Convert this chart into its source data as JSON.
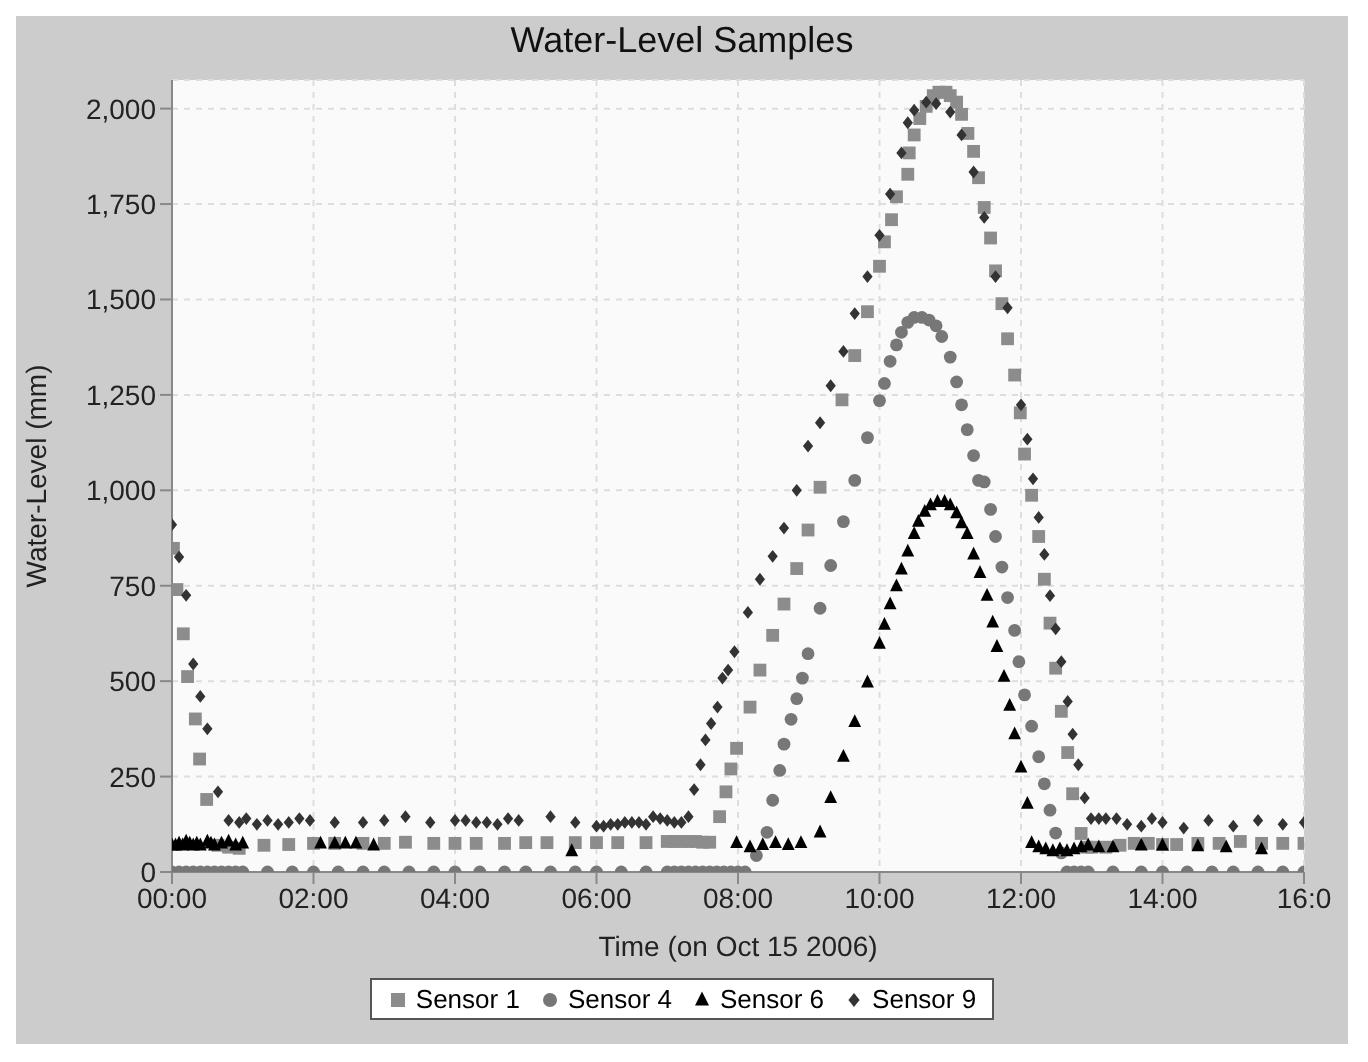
{
  "chart_data": {
    "type": "scatter",
    "title": "Water-Level Samples",
    "xlabel": "Time (on Oct 15 2006)",
    "ylabel": "Water-Level (mm)",
    "xlim": [
      0,
      16
    ],
    "xticks": [
      {
        "value": 0,
        "label": "00:00"
      },
      {
        "value": 2,
        "label": "02:00"
      },
      {
        "value": 4,
        "label": "04:00"
      },
      {
        "value": 6,
        "label": "06:00"
      },
      {
        "value": 8,
        "label": "08:00"
      },
      {
        "value": 10,
        "label": "10:00"
      },
      {
        "value": 12,
        "label": "12:00"
      },
      {
        "value": 14,
        "label": "14:00"
      },
      {
        "value": 16,
        "label": "16:0"
      }
    ],
    "ylim": [
      0,
      2075
    ],
    "yticks": [
      0,
      250,
      500,
      750,
      {
        "value": 1000,
        "label": "1,000"
      },
      {
        "value": 1250,
        "label": "1,250"
      },
      {
        "value": 1500,
        "label": "1,500"
      },
      {
        "value": 1750,
        "label": "1,750"
      },
      {
        "value": 2000,
        "label": "2,000"
      }
    ],
    "grid": true,
    "legend": "bottom",
    "series": [
      {
        "name": "Sensor 1",
        "color": "#8c8c8c",
        "marker": "square",
        "x": [
          0.02,
          0.07,
          0.16,
          0.22,
          0.33,
          0.39,
          0.49,
          0.65,
          0.8,
          0.95,
          1.3,
          1.65,
          2.0,
          2.3,
          2.7,
          3.0,
          3.3,
          3.7,
          4.0,
          4.3,
          4.7,
          5.0,
          5.3,
          5.7,
          6.0,
          6.3,
          6.7,
          7.0,
          7.1,
          7.2,
          7.3,
          7.4,
          7.5,
          7.6,
          7.74,
          7.83,
          7.9,
          7.98,
          8.17,
          8.31,
          8.49,
          8.65,
          8.83,
          8.99,
          9.16,
          9.47,
          9.65,
          9.83,
          10.0,
          10.07,
          10.17,
          10.24,
          10.4,
          10.42,
          10.49,
          10.57,
          10.66,
          10.76,
          10.84,
          10.94,
          11.0,
          11.09,
          11.16,
          11.25,
          11.33,
          11.4,
          11.48,
          11.57,
          11.64,
          11.73,
          11.81,
          11.91,
          11.99,
          12.05,
          12.15,
          12.25,
          12.33,
          12.41,
          12.49,
          12.57,
          12.66,
          12.73,
          12.85,
          12.93,
          13.0,
          13.2,
          13.4,
          13.6,
          13.8,
          14.0,
          14.2,
          14.5,
          14.8,
          15.1,
          15.4,
          15.7,
          16.0
        ],
        "values": [
          848,
          740,
          624,
          512,
          401,
          296,
          190,
          70,
          65,
          62,
          70,
          72,
          75,
          75,
          75,
          75,
          78,
          75,
          75,
          75,
          75,
          77,
          77,
          77,
          77,
          77,
          77,
          80,
          80,
          80,
          80,
          80,
          78,
          78,
          145,
          210,
          270,
          324,
          432,
          529,
          620,
          702,
          795,
          896,
          1008,
          1237,
          1353,
          1468,
          1587,
          1651,
          1709,
          1769,
          1828,
          1884,
          1931,
          1974,
          2006,
          2034,
          2043,
          2043,
          2034,
          2017,
          1985,
          1935,
          1888,
          1819,
          1741,
          1661,
          1575,
          1489,
          1397,
          1302,
          1203,
          1095,
          987,
          879,
          767,
          652,
          534,
          421,
          313,
          205,
          101,
          65,
          65,
          65,
          70,
          75,
          75,
          72,
          72,
          75,
          75,
          80,
          75,
          75,
          75
        ]
      },
      {
        "name": "Sensor 4",
        "color": "#777777",
        "marker": "circle",
        "x": [
          0,
          0.1,
          0.2,
          0.3,
          0.4,
          0.5,
          0.6,
          0.7,
          0.8,
          0.9,
          1.0,
          1.35,
          1.7,
          2.0,
          2.35,
          2.7,
          3.0,
          3.35,
          3.7,
          4.0,
          4.35,
          4.7,
          5.0,
          5.35,
          5.7,
          6.0,
          6.35,
          6.7,
          7.0,
          7.1,
          7.2,
          7.3,
          7.4,
          7.5,
          7.6,
          7.7,
          7.8,
          7.9,
          8.0,
          8.1,
          8.26,
          8.41,
          8.49,
          8.59,
          8.65,
          8.75,
          8.83,
          8.91,
          8.99,
          9.16,
          9.31,
          9.49,
          9.65,
          9.83,
          10.0,
          10.07,
          10.15,
          10.24,
          10.31,
          10.4,
          10.49,
          10.6,
          10.7,
          10.8,
          10.88,
          11.0,
          11.09,
          11.16,
          11.24,
          11.33,
          11.4,
          11.48,
          11.57,
          11.64,
          11.73,
          11.81,
          11.91,
          11.97,
          12.05,
          12.15,
          12.25,
          12.33,
          12.41,
          12.49,
          12.57,
          12.65,
          12.75,
          12.85,
          12.95,
          13.3,
          13.7,
          14.0,
          14.35,
          14.7,
          15.0,
          15.35,
          15.7,
          16.0
        ],
        "values": [
          0,
          0,
          0,
          0,
          0,
          0,
          0,
          0,
          0,
          0,
          0,
          0,
          0,
          0,
          0,
          0,
          0,
          0,
          0,
          0,
          0,
          0,
          0,
          0,
          0,
          0,
          0,
          0,
          0,
          0,
          0,
          0,
          0,
          0,
          0,
          0,
          0,
          0,
          0,
          0,
          43,
          104,
          188,
          266,
          335,
          400,
          454,
          508,
          572,
          691,
          803,
          918,
          1026,
          1138,
          1235,
          1280,
          1338,
          1381,
          1414,
          1440,
          1453,
          1453,
          1446,
          1431,
          1403,
          1349,
          1284,
          1224,
          1159,
          1091,
          1026,
          1022,
          950,
          879,
          799,
          719,
          633,
          551,
          464,
          382,
          302,
          231,
          162,
          102,
          50,
          0,
          0,
          0,
          0,
          0,
          0,
          0,
          0,
          0,
          0,
          0,
          0,
          0
        ]
      },
      {
        "name": "Sensor 6",
        "color": "#000000",
        "marker": "triangle",
        "x": [
          0,
          0.05,
          0.1,
          0.15,
          0.2,
          0.25,
          0.3,
          0.35,
          0.4,
          0.5,
          0.55,
          0.6,
          0.7,
          0.8,
          0.9,
          1.0,
          2.1,
          2.3,
          2.45,
          2.6,
          2.85,
          5.65,
          7.98,
          8.17,
          8.35,
          8.53,
          8.71,
          8.89,
          9.16,
          9.31,
          9.49,
          9.65,
          9.83,
          10.0,
          10.07,
          10.15,
          10.24,
          10.31,
          10.4,
          10.49,
          10.55,
          10.64,
          10.72,
          10.82,
          10.92,
          11.0,
          11.09,
          11.16,
          11.24,
          11.33,
          11.42,
          11.52,
          11.6,
          11.66,
          11.76,
          11.84,
          11.91,
          12.0,
          12.09,
          12.15,
          12.25,
          12.35,
          12.45,
          12.55,
          12.65,
          12.75,
          12.85,
          12.95,
          13.1,
          13.3,
          13.7,
          14.0,
          14.5,
          14.9,
          15.4
        ],
        "values": [
          70,
          70,
          75,
          70,
          80,
          75,
          70,
          75,
          70,
          80,
          75,
          70,
          75,
          80,
          70,
          75,
          75,
          75,
          75,
          75,
          70,
          55,
          76,
          65,
          71,
          76,
          71,
          76,
          104,
          194,
          302,
          393,
          497,
          598,
          648,
          702,
          749,
          793,
          840,
          886,
          918,
          944,
          961,
          970,
          970,
          961,
          940,
          914,
          886,
          832,
          784,
          724,
          654,
          590,
          512,
          436,
          361,
          274,
          179,
          76,
          65,
          60,
          55,
          60,
          55,
          60,
          65,
          70,
          65,
          65,
          70,
          70,
          68,
          65,
          60
        ]
      },
      {
        "name": "Sensor 9",
        "color": "#333333",
        "marker": "diamond",
        "x": [
          0,
          0.1,
          0.2,
          0.3,
          0.4,
          0.5,
          0.65,
          0.8,
          0.95,
          1.05,
          1.2,
          1.35,
          1.5,
          1.65,
          1.8,
          1.95,
          2.3,
          2.7,
          3.0,
          3.3,
          3.65,
          4.0,
          4.15,
          4.3,
          4.45,
          4.6,
          4.75,
          4.9,
          5.35,
          5.7,
          6.0,
          6.1,
          6.2,
          6.3,
          6.4,
          6.5,
          6.6,
          6.7,
          6.8,
          6.9,
          7.0,
          7.1,
          7.2,
          7.3,
          7.38,
          7.47,
          7.54,
          7.62,
          7.71,
          7.78,
          7.86,
          7.95,
          8.14,
          8.31,
          8.49,
          8.65,
          8.83,
          8.99,
          9.16,
          9.31,
          9.49,
          9.65,
          9.83,
          10.0,
          10.15,
          10.31,
          10.4,
          10.49,
          10.66,
          10.8,
          11.0,
          11.16,
          11.33,
          11.48,
          11.64,
          11.81,
          12.0,
          12.09,
          12.17,
          12.25,
          12.33,
          12.41,
          12.49,
          12.57,
          12.66,
          12.73,
          12.81,
          12.9,
          12.99,
          13.1,
          13.2,
          13.35,
          13.5,
          13.7,
          13.85,
          14.0,
          14.3,
          14.65,
          15.0,
          15.35,
          15.7,
          16.0
        ],
        "values": [
          910,
          825,
          725,
          545,
          460,
          375,
          210,
          135,
          130,
          140,
          125,
          135,
          125,
          130,
          140,
          135,
          130,
          130,
          135,
          145,
          130,
          135,
          135,
          130,
          130,
          125,
          140,
          135,
          145,
          130,
          120,
          120,
          125,
          125,
          130,
          130,
          130,
          125,
          145,
          140,
          135,
          130,
          130,
          145,
          216,
          281,
          346,
          389,
          432,
          508,
          529,
          577,
          680,
          767,
          827,
          901,
          1000,
          1116,
          1177,
          1274,
          1364,
          1463,
          1560,
          1668,
          1776,
          1884,
          1963,
          1996,
          2017,
          2013,
          1991,
          1931,
          1834,
          1715,
          1560,
          1478,
          1224,
          1134,
          1030,
          929,
          832,
          724,
          637,
          551,
          447,
          361,
          281,
          194,
          140,
          140,
          140,
          140,
          125,
          120,
          140,
          130,
          115,
          135,
          120,
          135,
          125,
          130
        ]
      }
    ]
  }
}
